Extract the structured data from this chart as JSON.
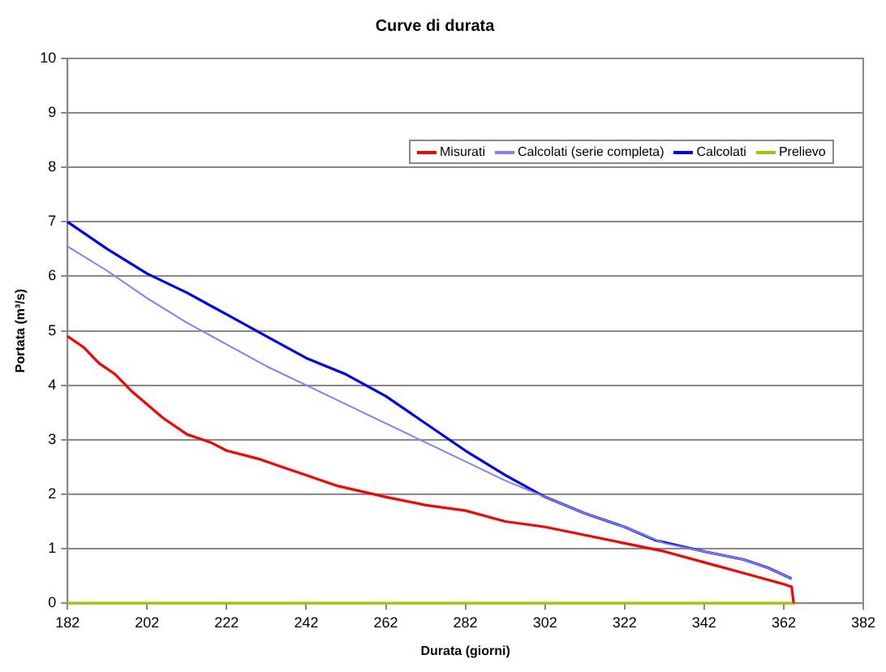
{
  "chart_data": {
    "type": "line",
    "title": "Curve di durata",
    "xlabel": "Durata (giorni)",
    "ylabel": "Portata (m³/s)",
    "xlim": [
      182,
      382
    ],
    "xticks": [
      182,
      202,
      222,
      242,
      262,
      282,
      302,
      322,
      342,
      362,
      382
    ],
    "ylim": [
      0,
      10
    ],
    "yticks": [
      0,
      1,
      2,
      3,
      4,
      5,
      6,
      7,
      8,
      9,
      10
    ],
    "grid": "y",
    "legend": "top right",
    "marker": "none",
    "line_style": "solid",
    "series": [
      {
        "name": "Misurati",
        "color": "#ff0000",
        "x": [
          182,
          186,
          190,
          194,
          198,
          202,
          206,
          212,
          218,
          222,
          230,
          236,
          242,
          250,
          256,
          262,
          272,
          282,
          292,
          302,
          312,
          322,
          332,
          342,
          352,
          362,
          364,
          364.5
        ],
        "values": [
          4.9,
          4.7,
          4.4,
          4.2,
          3.9,
          3.65,
          3.4,
          3.1,
          2.95,
          2.8,
          2.65,
          2.5,
          2.35,
          2.15,
          2.05,
          1.95,
          1.8,
          1.7,
          1.5,
          1.4,
          1.25,
          1.1,
          0.95,
          0.75,
          0.55,
          0.35,
          0.3,
          0
        ]
      },
      {
        "name": "Calcolati (serie completa)",
        "color": "#8080ff",
        "x": [
          182,
          192,
          202,
          212,
          222,
          232,
          242,
          252,
          262,
          272,
          282,
          292,
          302,
          312,
          322,
          332,
          342,
          352,
          358,
          364
        ],
        "values": [
          6.55,
          6.1,
          5.6,
          5.15,
          4.75,
          4.35,
          4.0,
          3.65,
          3.3,
          2.95,
          2.6,
          2.25,
          1.95,
          1.65,
          1.4,
          1.1,
          0.95,
          0.8,
          0.65,
          0.45
        ]
      },
      {
        "name": "Calcolati",
        "color": "#0000ff",
        "x": [
          182,
          192,
          202,
          212,
          222,
          232,
          242,
          252,
          262,
          272,
          282,
          292,
          302,
          312,
          322,
          330,
          342,
          352,
          358,
          364
        ],
        "values": [
          7,
          6.5,
          6.05,
          5.7,
          5.3,
          4.9,
          4.5,
          4.2,
          3.8,
          3.3,
          2.8,
          2.35,
          1.95,
          1.65,
          1.4,
          1.15,
          0.95,
          0.8,
          0.65,
          0.45
        ]
      },
      {
        "name": "Prelievo",
        "color": "#99cc00",
        "x": [
          182,
          365
        ],
        "values": [
          0,
          0
        ]
      }
    ]
  }
}
